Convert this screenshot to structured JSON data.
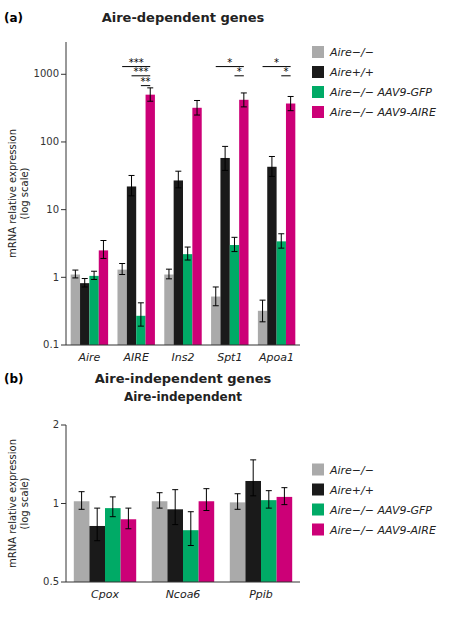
{
  "chart_data": [
    {
      "type": "bar",
      "title": "Aire-dependent genes",
      "ylabel": "mRNA relative expression\n(log scale)",
      "categories": [
        "Aire",
        "AIRE",
        "Ins2",
        "Spt1",
        "Apoa1"
      ],
      "series": [
        {
          "name": "Aire−/−",
          "color": "#aaaaaa",
          "values": [
            1.1,
            1.3,
            1.1,
            0.52,
            0.32
          ],
          "errors_lo": [
            0.12,
            0.2,
            0.15,
            0.14,
            0.1
          ],
          "errors_hi": [
            0.18,
            0.3,
            0.22,
            0.2,
            0.14
          ]
        },
        {
          "name": "Aire+/+",
          "color": "#1a1a1a",
          "values": [
            0.82,
            22.0,
            27.0,
            58.0,
            43.0
          ],
          "errors_lo": [
            0.1,
            6.0,
            6.0,
            20.0,
            12.0
          ],
          "errors_hi": [
            0.14,
            10.0,
            10.0,
            28.0,
            18.0
          ]
        },
        {
          "name": "Aire−/− AAV9-GFP",
          "color": "#00aa66",
          "values": [
            1.05,
            0.27,
            2.2,
            3.0,
            3.4
          ],
          "errors_lo": [
            0.12,
            0.08,
            0.4,
            0.6,
            0.7
          ],
          "errors_hi": [
            0.18,
            0.15,
            0.6,
            0.9,
            1.0
          ]
        },
        {
          "name": "Aire−/− AAV9-AIRE",
          "color": "#cc0077",
          "values": [
            2.5,
            500.0,
            320.0,
            420.0,
            370.0
          ],
          "errors_lo": [
            0.6,
            100.0,
            70.0,
            90.0,
            80.0
          ],
          "errors_hi": [
            1.0,
            130.0,
            90.0,
            110.0,
            100.0
          ]
        }
      ],
      "ylim": [
        0.1,
        3000
      ],
      "yticks": [
        0.1,
        1,
        10,
        100,
        1000
      ],
      "log": "y",
      "grid": false,
      "legend": "upper right",
      "annotations": [
        {
          "text": "(a)"
        },
        {
          "text": "***",
          "category": "AIRE",
          "from": 0,
          "to": 3,
          "y": 1300
        },
        {
          "text": "***",
          "category": "AIRE",
          "from": 1,
          "to": 3,
          "y": 950
        },
        {
          "text": "**",
          "category": "AIRE",
          "from": 2,
          "to": 3,
          "y": 680
        },
        {
          "text": "*",
          "category": "Spt1",
          "from": 0,
          "to": 3,
          "y": 1300
        },
        {
          "text": "*",
          "category": "Spt1",
          "from": 2,
          "to": 3,
          "y": 950
        },
        {
          "text": "*",
          "category": "Apoa1",
          "from": 0,
          "to": 3,
          "y": 1300
        },
        {
          "text": "*",
          "category": "Apoa1",
          "from": 2,
          "to": 3,
          "y": 950
        }
      ]
    },
    {
      "type": "bar",
      "title": "Aire-independent genes",
      "subtitle": "Aire-independent",
      "ylabel": "mRNA relative expression\n(log scale)",
      "categories": [
        "Cpox",
        "Ncoa6",
        "Ppib"
      ],
      "series": [
        {
          "name": "Aire−/−",
          "color": "#aaaaaa",
          "values": [
            1.02,
            1.02,
            1.01
          ],
          "errors_lo": [
            0.07,
            0.06,
            0.06
          ],
          "errors_hi": [
            0.09,
            0.08,
            0.08
          ]
        },
        {
          "name": "Aire+/+",
          "color": "#1a1a1a",
          "values": [
            0.82,
            0.95,
            1.22
          ],
          "errors_lo": [
            0.1,
            0.12,
            0.15
          ],
          "errors_hi": [
            0.14,
            0.18,
            0.25
          ]
        },
        {
          "name": "Aire−/− AAV9-GFP",
          "color": "#00aa66",
          "values": [
            0.96,
            0.79,
            1.03
          ],
          "errors_lo": [
            0.07,
            0.1,
            0.07
          ],
          "errors_hi": [
            0.1,
            0.14,
            0.09
          ]
        },
        {
          "name": "Aire−/− AAV9-AIRE",
          "color": "#cc0077",
          "values": [
            0.87,
            1.02,
            1.06
          ],
          "errors_lo": [
            0.07,
            0.08,
            0.07
          ],
          "errors_hi": [
            0.09,
            0.12,
            0.09
          ]
        }
      ],
      "ylim": [
        0.5,
        2
      ],
      "yticks": [
        0.5,
        1,
        2
      ],
      "log": "y",
      "grid": false,
      "legend": "right",
      "annotations": [
        {
          "text": "(b)"
        }
      ]
    }
  ]
}
